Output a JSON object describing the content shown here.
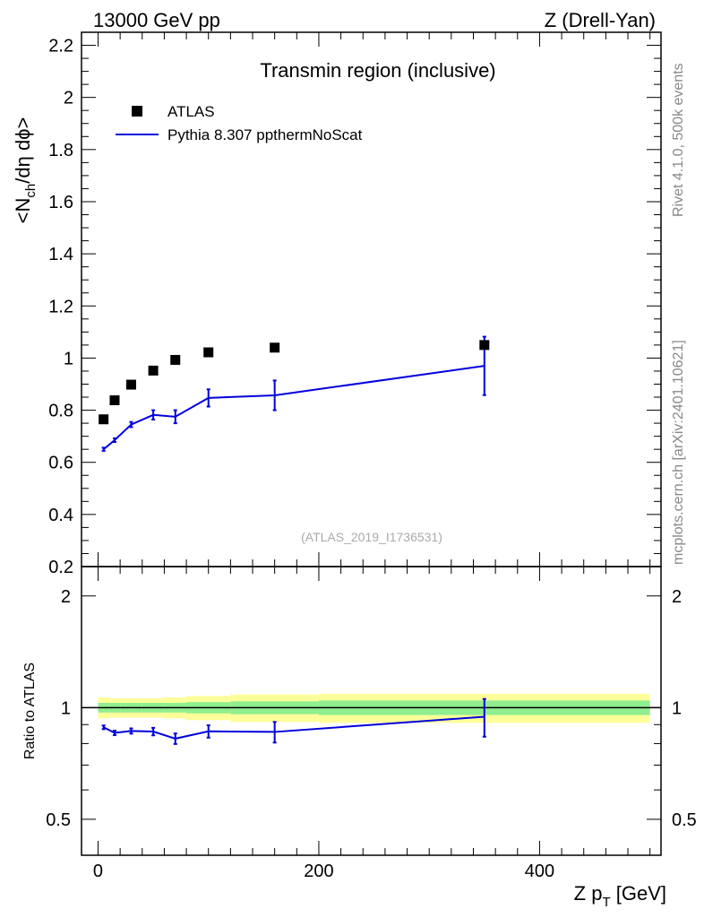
{
  "header": {
    "left": "13000 GeV pp",
    "right": "Z (Drell-Yan)"
  },
  "side": {
    "upper": "Rivet 4.1.0,  500k events",
    "lower": "mcplots.cern.ch [arXiv:2401.10621]"
  },
  "colors": {
    "mc": "#0000dd",
    "data": "#000000",
    "band_inner": "#90ee90",
    "band_outer": "#ffff99"
  },
  "chart_data": [
    {
      "id": "main",
      "type": "scatter",
      "title": "Transmin region (inclusive)",
      "ylabel_main": "<N",
      "ylabel_sub1": "ch",
      "ylabel_tail": "/dη dϕ>",
      "analysis_label": "(ATLAS_2019_I1736531)",
      "xlim": [
        -15,
        510
      ],
      "ylim": [
        0.2,
        2.25
      ],
      "yticks": [
        0.2,
        0.4,
        0.6,
        0.8,
        1.0,
        1.2,
        1.4,
        1.6,
        1.8,
        2.0,
        2.2
      ],
      "ytick_labels": [
        "0.2",
        "0.4",
        "0.6",
        "0.8",
        "1",
        "1.2",
        "1.4",
        "1.6",
        "1.8",
        "2",
        "2.2"
      ],
      "legend": {
        "position": "top-left",
        "entries": [
          {
            "label": "ATLAS",
            "kind": "marker"
          },
          {
            "label": "Pythia 8.307 ppthermNoScat",
            "kind": "line"
          }
        ]
      },
      "series": [
        {
          "name": "ATLAS",
          "x": [
            5,
            15,
            30,
            50,
            70,
            100,
            160,
            350
          ],
          "y": [
            0.765,
            0.838,
            0.898,
            0.952,
            0.993,
            1.022,
            1.04,
            1.05
          ]
        },
        {
          "name": "Pythia 8.307 ppthermNoScat",
          "x": [
            5,
            15,
            30,
            50,
            70,
            100,
            160,
            350
          ],
          "y": [
            0.65,
            0.685,
            0.745,
            0.782,
            0.775,
            0.847,
            0.857,
            0.97
          ],
          "err": [
            0.006,
            0.007,
            0.01,
            0.018,
            0.025,
            0.033,
            0.057,
            0.112
          ]
        }
      ]
    },
    {
      "id": "ratio",
      "type": "line",
      "ylabel": "Ratio to ATLAS",
      "xlabel_main": "Z p",
      "xlabel_sub": "T",
      "xlabel_tail": " [GeV]",
      "xlim": [
        -15,
        510
      ],
      "xticks": [
        0,
        200,
        400
      ],
      "xtick_labels": [
        "0",
        "200",
        "400"
      ],
      "ylim": [
        0.4,
        2.4
      ],
      "yticks": [
        0.5,
        1,
        2
      ],
      "ytick_labels": [
        "0.5",
        "1",
        "2"
      ],
      "band_bins": [
        0,
        10,
        20,
        40,
        60,
        80,
        120,
        200,
        500
      ],
      "band_inner": [
        0.03,
        0.03,
        0.03,
        0.03,
        0.03,
        0.035,
        0.04,
        0.045
      ],
      "band_outer": [
        0.065,
        0.06,
        0.06,
        0.06,
        0.065,
        0.075,
        0.085,
        0.09
      ],
      "series": [
        {
          "name": "Pythia 8.307 ppthermNoScat",
          "x": [
            5,
            15,
            30,
            50,
            70,
            100,
            160,
            350
          ],
          "y": [
            0.885,
            0.855,
            0.865,
            0.862,
            0.825,
            0.863,
            0.86,
            0.945
          ],
          "err": [
            0.01,
            0.012,
            0.014,
            0.02,
            0.027,
            0.033,
            0.055,
            0.11
          ]
        }
      ]
    }
  ]
}
